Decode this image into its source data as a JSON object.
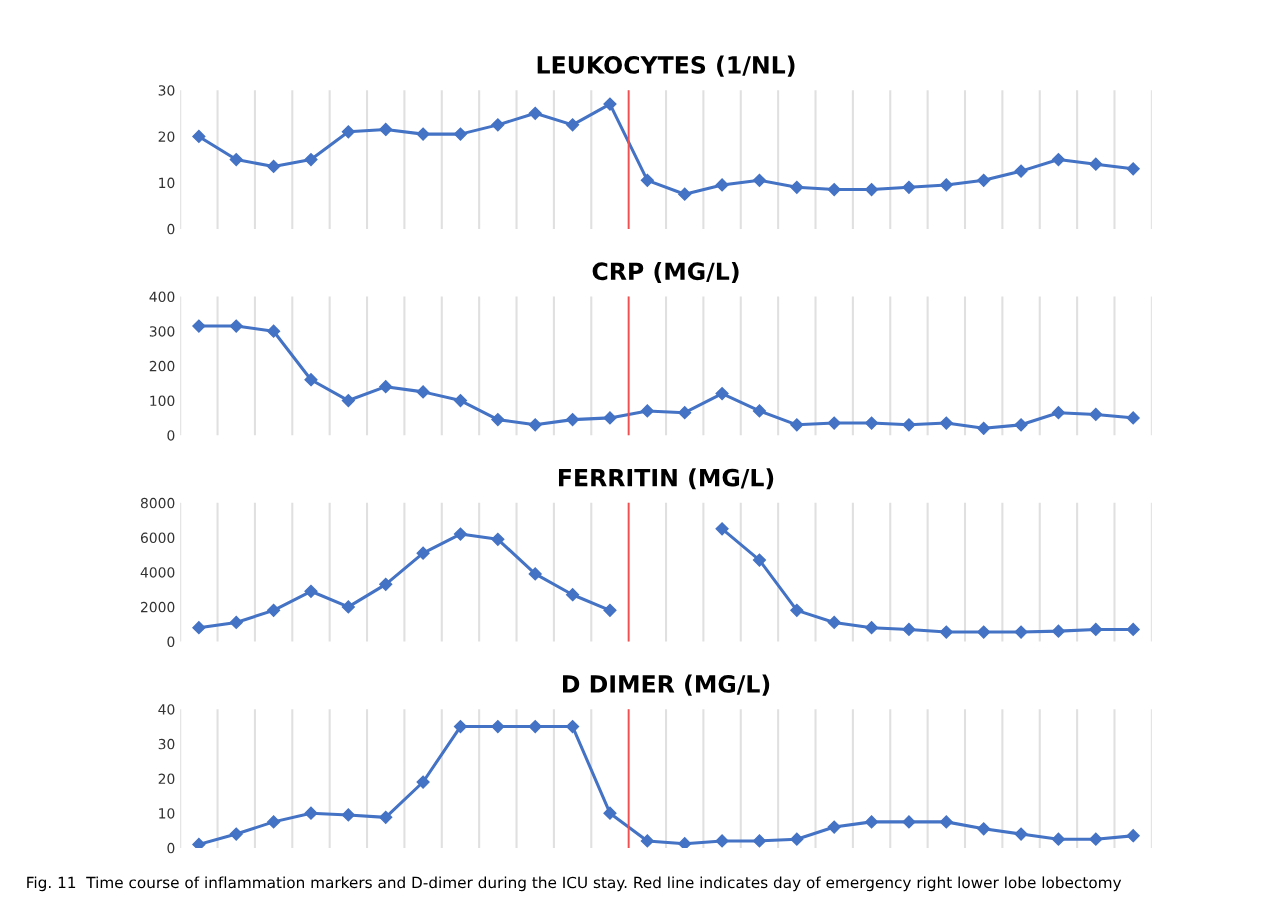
{
  "chart_data": [
    {
      "type": "line",
      "title": "LEUKOCYTES (1/NL)",
      "categories": [
        null,
        null,
        null,
        null,
        null,
        null,
        null,
        null,
        null,
        null,
        null,
        null,
        null,
        null,
        null,
        null,
        null,
        null,
        null,
        null,
        null,
        null,
        null,
        null,
        null,
        null
      ],
      "series": [
        {
          "color": "#4472c4",
          "values": [
            20,
            15,
            13.5,
            15,
            21,
            21.5,
            20.5,
            20.5,
            22.5,
            25,
            22.5,
            27,
            10.5,
            7.5,
            9.5,
            10.5,
            9,
            8.5,
            8.5,
            9,
            9.5,
            10.5,
            12.5,
            15,
            14,
            13
          ]
        }
      ],
      "ylim": [
        0,
        30
      ],
      "yticks": [
        0,
        10,
        20,
        30
      ],
      "grid": "x",
      "marker": "diamond",
      "line_style": "solid",
      "tick_labels": "y"
    },
    {
      "type": "line",
      "title": "CRP (MG/L)",
      "categories": [
        null,
        null,
        null,
        null,
        null,
        null,
        null,
        null,
        null,
        null,
        null,
        null,
        null,
        null,
        null,
        null,
        null,
        null,
        null,
        null,
        null,
        null,
        null,
        null,
        null,
        null
      ],
      "series": [
        {
          "color": "#4472c4",
          "values": [
            315,
            315,
            300,
            160,
            100,
            140,
            125,
            100,
            45,
            30,
            45,
            50,
            70,
            65,
            120,
            70,
            30,
            35,
            35,
            30,
            35,
            20,
            30,
            65,
            60,
            50
          ]
        }
      ],
      "ylim": [
        0,
        400
      ],
      "yticks": [
        0,
        100,
        200,
        300,
        400
      ],
      "grid": "x",
      "marker": "diamond",
      "line_style": "solid",
      "tick_labels": "y"
    },
    {
      "type": "line",
      "title": "FERRITIN (MG/L)",
      "categories": [
        null,
        null,
        null,
        null,
        null,
        null,
        null,
        null,
        null,
        null,
        null,
        null,
        null,
        null,
        null,
        null,
        null,
        null,
        null,
        null,
        null,
        null,
        null,
        null,
        null,
        null
      ],
      "series": [
        {
          "color": "#4472c4",
          "values": [
            800,
            1100,
            1800,
            2900,
            2000,
            3300,
            5100,
            6200,
            5900,
            3900,
            2700,
            1800,
            null,
            null,
            6500,
            4700,
            1800,
            1100,
            800,
            700,
            550,
            550,
            550,
            600,
            700,
            700
          ]
        }
      ],
      "ylim": [
        0,
        8000
      ],
      "yticks": [
        0,
        2000,
        4000,
        6000,
        8000
      ],
      "grid": "x",
      "marker": "diamond",
      "line_style": "solid",
      "tick_labels": "y"
    },
    {
      "type": "line",
      "title": "D DIMER (MG/L)",
      "categories": [
        null,
        null,
        null,
        null,
        null,
        null,
        null,
        null,
        null,
        null,
        null,
        null,
        null,
        null,
        null,
        null,
        null,
        null,
        null,
        null,
        null,
        null,
        null,
        null,
        null,
        null
      ],
      "series": [
        {
          "color": "#4472c4",
          "values": [
            1,
            4,
            7.5,
            10,
            9.5,
            8.8,
            19,
            35,
            35,
            35,
            35,
            10,
            2,
            1.2,
            2,
            2,
            2.5,
            6,
            7.5,
            7.5,
            7.5,
            5.5,
            4,
            2.5,
            2.5,
            3.5
          ]
        }
      ],
      "ylim": [
        0,
        40
      ],
      "yticks": [
        0,
        10,
        20,
        30,
        40
      ],
      "grid": "x",
      "marker": "diamond",
      "line_style": "solid",
      "tick_labels": "y",
      "annotations": [
        "Fig. 11  Time course of inflammation markers and D-dimer during the ICU stay. Red line indicates day of emergency right lower lobe lobectomy"
      ]
    }
  ]
}
